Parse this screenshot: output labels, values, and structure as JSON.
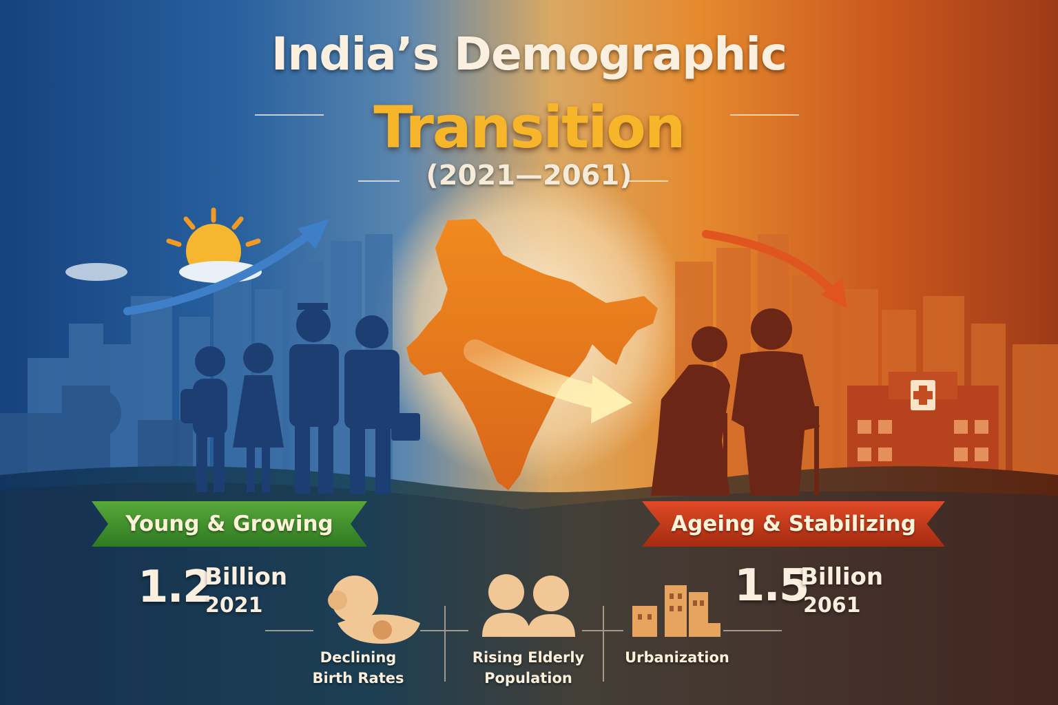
{
  "title": {
    "line1": "India’s Demographic",
    "line2": "Transition",
    "years": "(2021—2061)"
  },
  "left": {
    "label": "Young & Growing",
    "population_value": "1.2",
    "population_unit": "Billion",
    "year": "2021"
  },
  "right": {
    "label": "Ageing & Stabilizing",
    "population_value": "1.5",
    "population_unit": "Billion",
    "year": "2061"
  },
  "features": [
    {
      "line1": "Declining",
      "line2": "Birth Rates",
      "icon": "baby-icon"
    },
    {
      "line1": "Rising Elderly",
      "line2": "Population",
      "icon": "elderly-couple-icon"
    },
    {
      "line1": "Urbanization",
      "line2": "",
      "icon": "city-buildings-icon"
    }
  ],
  "colors": {
    "title_accent": "#f7b52a",
    "young_ribbon": "#3f8f2c",
    "ageing_ribbon": "#c23a1a",
    "blue_side": "#1e4f8c",
    "orange_side": "#e07a26"
  }
}
